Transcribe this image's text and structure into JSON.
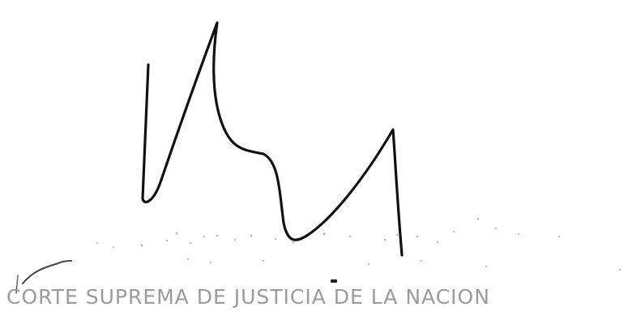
{
  "document": {
    "stamp_text": "CORTE SUPREMA DE JUSTICIA DE LA NACION",
    "ink_color": "#111111",
    "stamp_color": "#8a8a8a"
  }
}
